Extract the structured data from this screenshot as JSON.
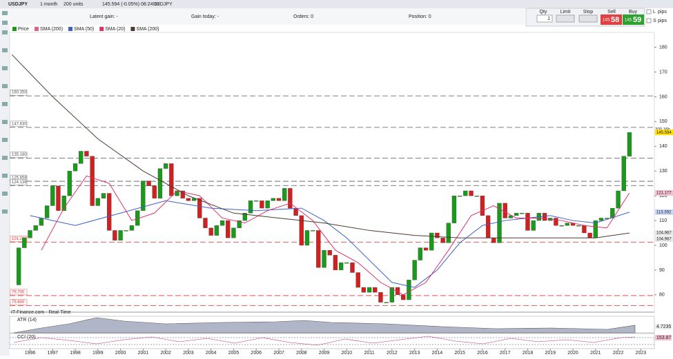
{
  "toolbar": {
    "symbol": "USDJPY",
    "period": "1 month",
    "units": "200 units",
    "quote": "145.594 (-0.05%) 08:24:52",
    "instrument": "USDJPY"
  },
  "status": {
    "latent_gain": "Latent gain: -",
    "gain_today": "Gain today: -",
    "orders": "Orders: 0",
    "position": "Position: 0"
  },
  "trade_panel": {
    "qty_label": "Qty",
    "qty": "1",
    "limit_label": "Limit",
    "stop_label": "Stop",
    "sell_label": "Sell",
    "buy_label": "Buy",
    "sell_small": "145.",
    "sell_big": "58",
    "buy_small": "145.",
    "buy_big": "59"
  },
  "side_panel": {
    "long": "L",
    "short": "S",
    "pips": "pips"
  },
  "chart_data": {
    "type": "candlestick",
    "xlim": [
      1995.1,
      2023.6
    ],
    "xticks": [
      1996,
      1997,
      1998,
      1999,
      2000,
      2001,
      2002,
      2003,
      2004,
      2005,
      2006,
      2007,
      2008,
      2009,
      2010,
      2011,
      2012,
      2013,
      2014,
      2015,
      2016,
      2017,
      2018,
      2019,
      2020,
      2021,
      2022,
      2023
    ],
    "ylim": [
      73,
      186
    ],
    "yticks": [
      80,
      90,
      100,
      110,
      120,
      130,
      140,
      150,
      160,
      170,
      180
    ],
    "series": [
      {
        "name": "Price",
        "color": "#1a9a1a",
        "down_color": "#d02020",
        "x": [
          1995.25,
          1995.5,
          1995.75,
          1996,
          1996.25,
          1996.5,
          1996.75,
          1997,
          1997.25,
          1997.5,
          1997.75,
          1998,
          1998.25,
          1998.5,
          1998.75,
          1999,
          1999.25,
          1999.5,
          1999.75,
          2000,
          2000.25,
          2000.5,
          2000.75,
          2001,
          2001.25,
          2001.5,
          2001.75,
          2002,
          2002.25,
          2002.5,
          2002.75,
          2003,
          2003.25,
          2003.5,
          2003.75,
          2004,
          2004.25,
          2004.5,
          2004.75,
          2005,
          2005.25,
          2005.5,
          2005.75,
          2006,
          2006.25,
          2006.5,
          2006.75,
          2007,
          2007.25,
          2007.5,
          2007.75,
          2008,
          2008.25,
          2008.5,
          2008.75,
          2009,
          2009.25,
          2009.5,
          2009.75,
          2010,
          2010.25,
          2010.5,
          2010.75,
          2011,
          2011.25,
          2011.5,
          2011.75,
          2012,
          2012.25,
          2012.5,
          2012.75,
          2013,
          2013.25,
          2013.5,
          2013.75,
          2014,
          2014.25,
          2014.5,
          2014.75,
          2015,
          2015.25,
          2015.5,
          2015.75,
          2016,
          2016.25,
          2016.5,
          2016.75,
          2017,
          2017.25,
          2017.5,
          2017.75,
          2018,
          2018.25,
          2018.5,
          2018.75,
          2019,
          2019.25,
          2019.5,
          2019.75,
          2020,
          2020.25,
          2020.5,
          2020.75,
          2021,
          2021.25,
          2021.5,
          2021.75,
          2022,
          2022.25,
          2022.5
        ],
        "values": [
          84,
          99,
          103,
          106,
          108,
          111,
          116,
          124,
          114,
          120,
          130,
          133,
          138,
          136,
          116,
          119,
          121,
          106,
          102,
          106,
          106,
          108,
          114,
          126,
          124,
          119,
          131,
          133,
          120,
          122,
          119,
          118,
          119,
          111,
          107,
          104,
          108,
          110,
          103,
          107,
          110,
          113,
          118,
          118,
          115,
          118,
          119,
          118,
          123,
          115,
          112,
          100,
          106,
          106,
          91,
          98,
          96,
          90,
          93,
          93,
          89,
          83,
          81,
          83,
          81,
          77,
          77,
          83,
          80,
          78,
          86,
          94,
          99,
          98,
          105,
          103,
          101,
          109,
          120,
          120,
          122,
          120,
          120,
          112,
          103,
          101,
          117,
          111,
          112,
          113,
          113,
          106,
          110,
          113,
          110,
          111,
          108,
          108,
          109,
          108,
          108,
          105,
          103,
          110,
          111,
          111,
          115,
          122,
          136,
          145.594
        ]
      },
      {
        "name": "SMA (200)",
        "color": "#e0608a",
        "x": [],
        "values": []
      },
      {
        "name": "SMA (50)",
        "color": "#3a5fcd",
        "x": [
          1996,
          1998,
          2000,
          2002,
          2004,
          2006,
          2008,
          2009,
          2010,
          2011,
          2012,
          2013,
          2014,
          2015,
          2016,
          2017,
          2019,
          2020,
          2021,
          2022.5
        ],
        "values": [
          112,
          108,
          113,
          118,
          115,
          114,
          115,
          110,
          103,
          94,
          85,
          83,
          90,
          101,
          108,
          110,
          112,
          110,
          109,
          113.392
        ]
      },
      {
        "name": "SMA (20)",
        "color": "#e0306a",
        "x": [
          1996.5,
          1997.5,
          1998.5,
          1999.5,
          2000.5,
          2001.5,
          2002.5,
          2003.5,
          2004.5,
          2005.5,
          2006.5,
          2007.5,
          2008.5,
          2009.5,
          2010.5,
          2011.5,
          2012.5,
          2013.5,
          2014.5,
          2015.5,
          2016.5,
          2017.5,
          2018.5,
          2019.5,
          2020.5,
          2021.5,
          2022.5
        ],
        "values": [
          98,
          115,
          128,
          125,
          110,
          113,
          122,
          120,
          111,
          109,
          114,
          117,
          110,
          98,
          93,
          85,
          80,
          85,
          98,
          112,
          116,
          111,
          111,
          110,
          108,
          107,
          121.177
        ]
      },
      {
        "name": "SMA (200)",
        "color": "#4a3a30",
        "x": [
          1995.2,
          1997,
          1999,
          2001,
          2003,
          2005,
          2007,
          2009,
          2011,
          2013,
          2015,
          2017,
          2019,
          2021,
          2022.5
        ],
        "values": [
          177,
          160,
          143,
          130,
          120,
          113,
          111,
          109,
          106,
          104,
          103,
          103,
          103,
          103,
          104.967
        ]
      }
    ],
    "levels": [
      {
        "value": 160.35,
        "label": "160.350",
        "color": "#555555"
      },
      {
        "value": 147.63,
        "label": "147.630",
        "color": "#555555"
      },
      {
        "value": 135.18,
        "label": "135.180",
        "color": "#555555"
      },
      {
        "value": 125.858,
        "label": "125.858",
        "color": "#555555"
      },
      {
        "value": 124.138,
        "label": "124.138",
        "color": "#555555"
      },
      {
        "value": 101.22,
        "label": "101.220",
        "color": "#e03030"
      },
      {
        "value": 79.7,
        "label": "79.700",
        "color": "#e03030"
      },
      {
        "value": 75.6,
        "label": "75.600",
        "color": "#e03030"
      }
    ],
    "tags": [
      {
        "value": 145.594,
        "color": "#ffe000"
      },
      {
        "value": 121.177,
        "color": "#f4c0d0"
      },
      {
        "value": 113.392,
        "color": "#c8d4f4"
      },
      {
        "value": 104.967,
        "color": "#e8e8e8"
      },
      {
        "value": 104.967,
        "color": "#e8e8e8"
      }
    ],
    "countdown": "200 16h",
    "source": "IT-Finance.com - Real-Time",
    "atr": {
      "name": "ATR (14)",
      "value": 4.7235
    },
    "cci": {
      "name": "CCI (20)",
      "value": 153.87
    }
  }
}
